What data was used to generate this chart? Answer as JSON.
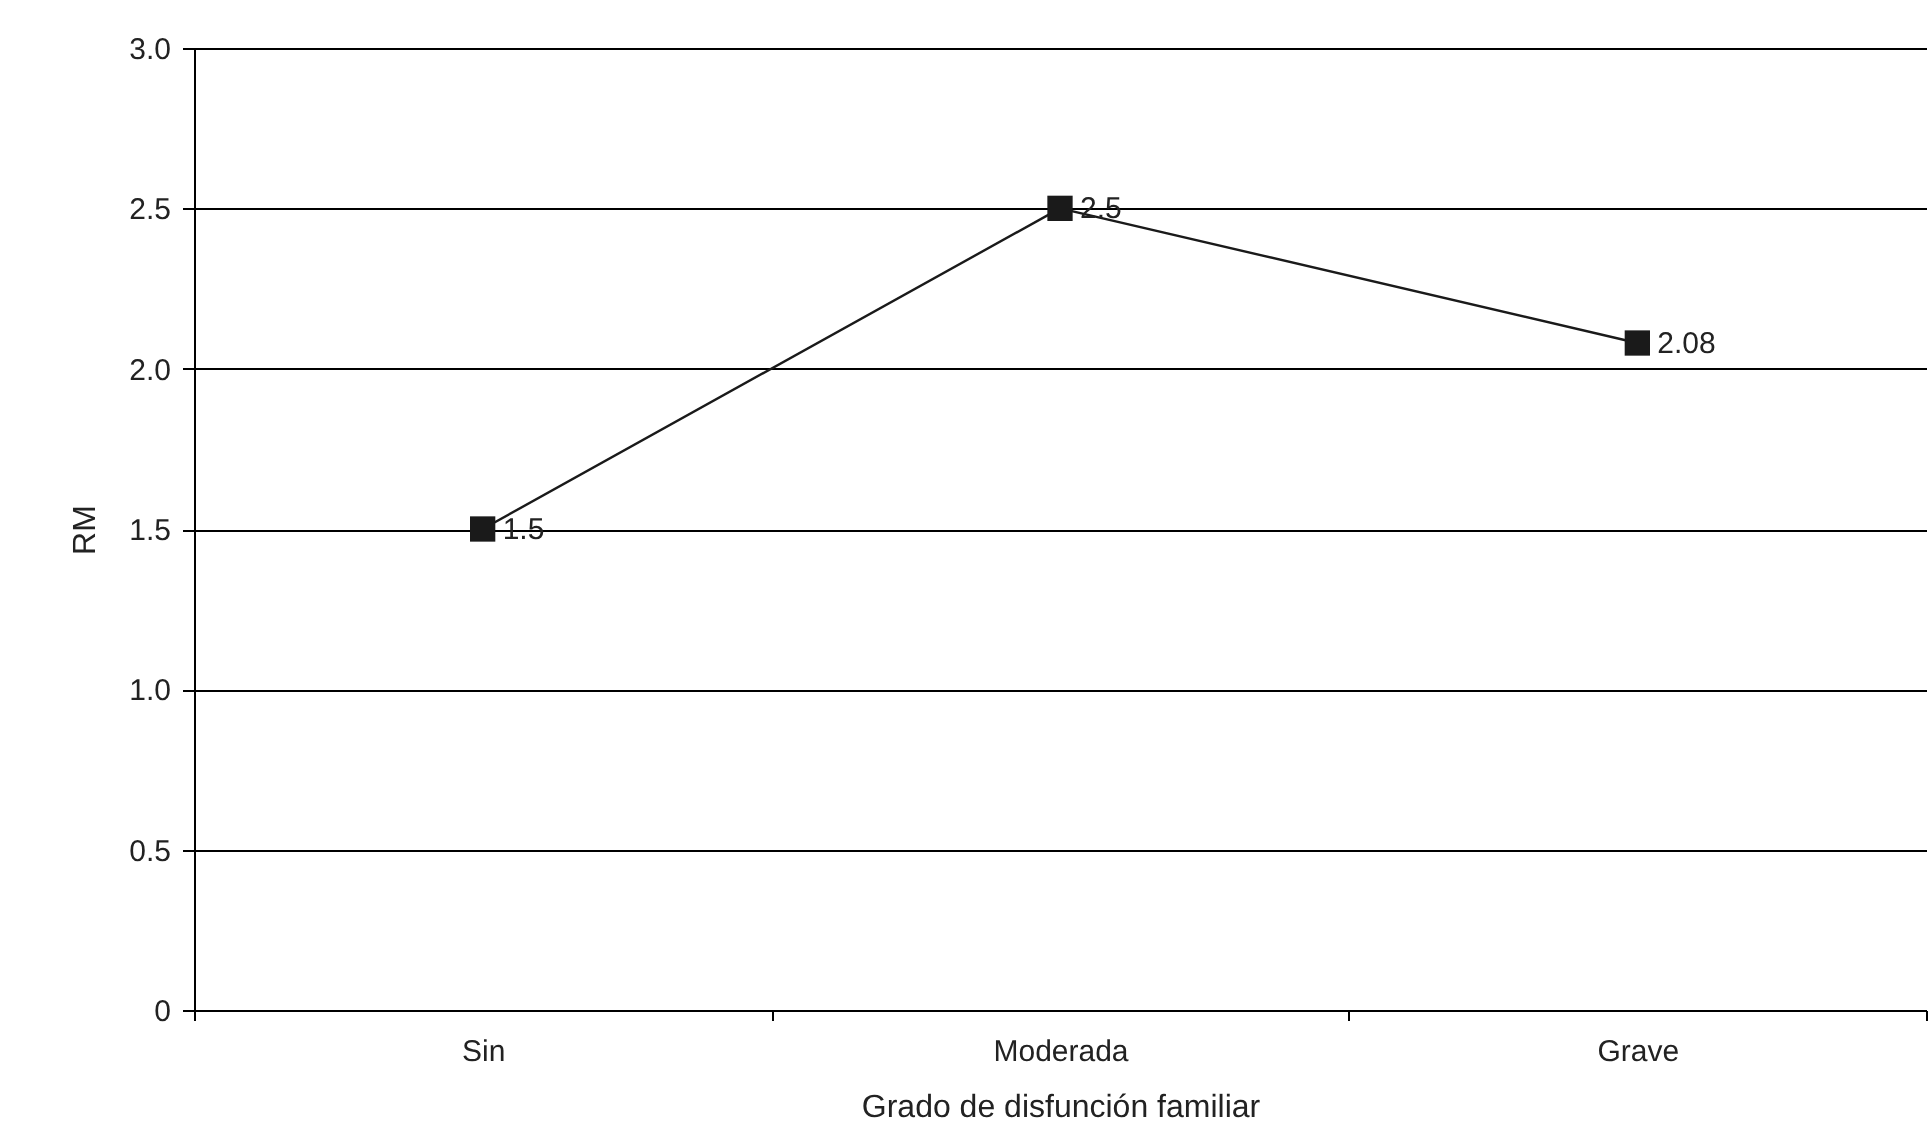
{
  "chart_data": {
    "type": "line",
    "xlabel": "Grado de disfunción familiar",
    "ylabel": "RM",
    "categories": [
      "Sin",
      "Moderada",
      "Grave"
    ],
    "series": [
      {
        "color": "#1a1a1a",
        "values": [
          1.5,
          2.5,
          2.08
        ]
      }
    ],
    "ylim": [
      0,
      3.0
    ],
    "yticks": [
      0,
      0.5,
      {
        "value": 1,
        "label": "1.0"
      },
      1.5,
      {
        "value": 2,
        "label": "2.0"
      },
      2.5,
      {
        "value": 3,
        "label": "3.0"
      }
    ],
    "grid": "y",
    "marker": "square",
    "line_style": "solid",
    "data_labels": true,
    "legend": false
  }
}
